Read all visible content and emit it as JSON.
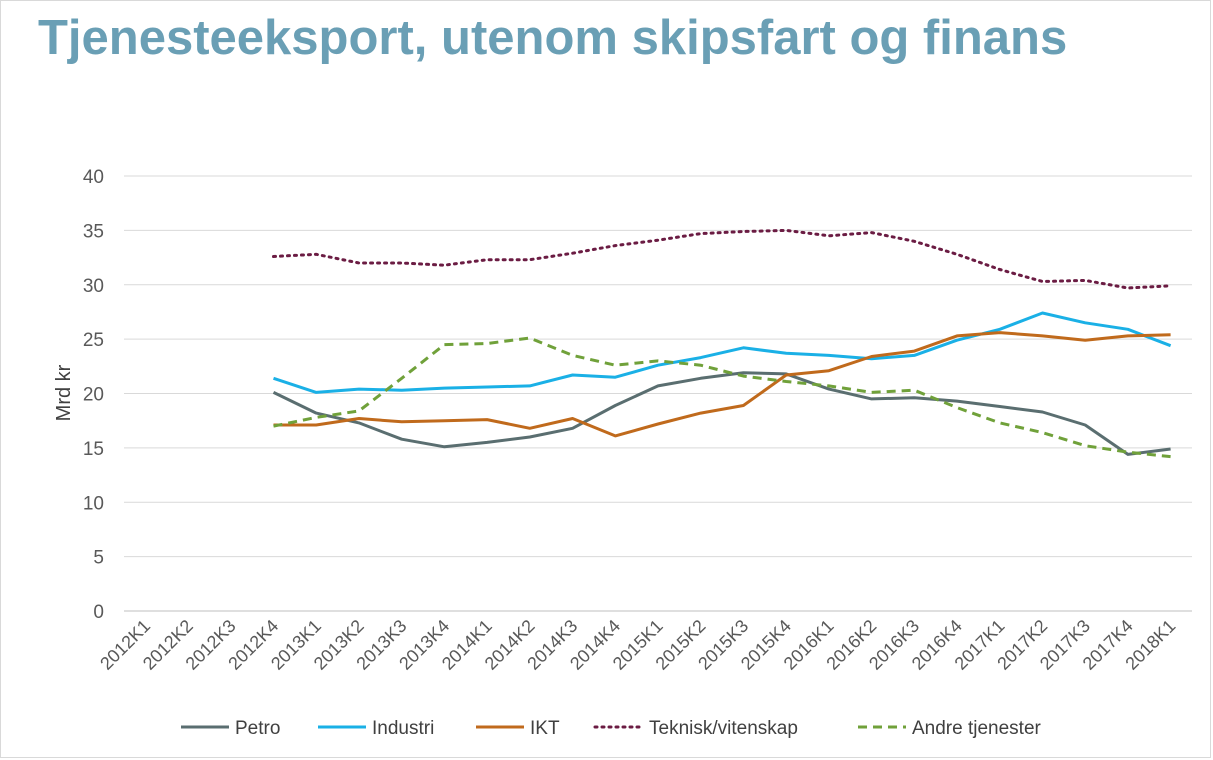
{
  "chart_data": {
    "type": "line",
    "title": "Tjenesteeksport, utenom skipsfart og finans",
    "ylabel": "Mrd kr",
    "xlabel": "",
    "ylim": [
      0,
      40
    ],
    "yticks": [
      0,
      5,
      10,
      15,
      20,
      25,
      30,
      35,
      40
    ],
    "grid": true,
    "legend_position": "bottom",
    "categories": [
      "2012K1",
      "2012K2",
      "2012K3",
      "2012K4",
      "2013K1",
      "2013K2",
      "2013K3",
      "2013K4",
      "2014K1",
      "2014K2",
      "2014K3",
      "2014K4",
      "2015K1",
      "2015K2",
      "2015K3",
      "2015K4",
      "2016K1",
      "2016K2",
      "2016K3",
      "2016K4",
      "2017K1",
      "2017K2",
      "2017K3",
      "2017K4",
      "2018K1"
    ],
    "series": [
      {
        "name": "Petro",
        "color": "#5a6e70",
        "dash": "solid",
        "values": [
          null,
          null,
          null,
          20.1,
          18.2,
          17.3,
          15.8,
          15.1,
          15.5,
          16.0,
          16.8,
          18.9,
          20.7,
          21.4,
          21.9,
          21.8,
          20.4,
          19.5,
          19.6,
          19.3,
          18.8,
          18.3,
          17.1,
          14.4,
          14.9
        ]
      },
      {
        "name": "Industri",
        "color": "#1ab0e6",
        "dash": "solid",
        "values": [
          null,
          null,
          null,
          21.4,
          20.1,
          20.4,
          20.3,
          20.5,
          20.6,
          20.7,
          21.7,
          21.5,
          22.6,
          23.3,
          24.2,
          23.7,
          23.5,
          23.2,
          23.5,
          24.9,
          25.9,
          27.4,
          26.5,
          25.9,
          24.4
        ]
      },
      {
        "name": "IKT",
        "color": "#c06a1c",
        "dash": "solid",
        "values": [
          null,
          null,
          null,
          17.1,
          17.1,
          17.7,
          17.4,
          17.5,
          17.6,
          16.8,
          17.7,
          16.1,
          17.2,
          18.2,
          18.9,
          21.7,
          22.1,
          23.4,
          23.9,
          25.3,
          25.6,
          25.3,
          24.9,
          25.3,
          25.4
        ]
      },
      {
        "name": "Teknisk/vitenskap",
        "color": "#6b1c43",
        "dash": "dotted",
        "values": [
          null,
          null,
          null,
          32.6,
          32.8,
          32.0,
          32.0,
          31.8,
          32.3,
          32.3,
          32.9,
          33.6,
          34.1,
          34.7,
          34.9,
          35.0,
          34.5,
          34.8,
          34.0,
          32.8,
          31.4,
          30.3,
          30.4,
          29.7,
          29.9
        ]
      },
      {
        "name": "Andre tjenester",
        "color": "#70a13a",
        "dash": "dashed",
        "values": [
          null,
          null,
          null,
          17.0,
          17.8,
          18.4,
          21.4,
          24.5,
          24.6,
          25.1,
          23.5,
          22.6,
          23.0,
          22.6,
          21.6,
          21.1,
          20.7,
          20.1,
          20.3,
          18.7,
          17.3,
          16.4,
          15.2,
          14.6,
          14.2
        ]
      }
    ]
  }
}
